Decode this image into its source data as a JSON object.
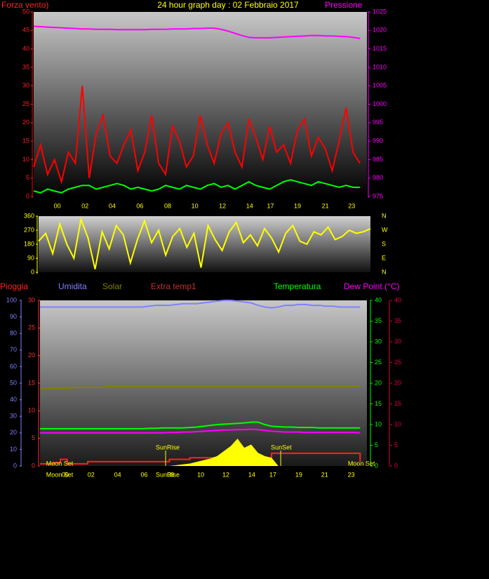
{
  "chart_data": [
    {
      "type": "line",
      "title": "24 hour graph day : 02 Febbraio 2017",
      "ylabel": "Forza vento)",
      "y2label": "Pressione",
      "x": [
        0,
        1,
        2,
        3,
        4,
        5,
        6,
        7,
        8,
        9,
        10,
        11,
        12,
        13,
        14,
        15,
        16,
        17,
        18,
        19,
        20,
        21,
        22,
        23,
        24,
        25,
        26,
        27,
        28,
        29,
        30,
        31,
        32,
        33,
        34,
        35,
        36,
        37,
        38,
        39,
        40,
        41,
        42,
        43,
        44,
        45,
        46,
        47
      ],
      "xlim": [
        0,
        48
      ],
      "xticks": [
        {
          "value": 3.4,
          "label": "00"
        },
        {
          "value": 7.4,
          "label": "02"
        },
        {
          "value": 11.3,
          "label": "04"
        },
        {
          "value": 15.3,
          "label": "06"
        },
        {
          "value": 19.3,
          "label": "08"
        },
        {
          "value": 23.2,
          "label": "10"
        },
        {
          "value": 27.2,
          "label": "12"
        },
        {
          "value": 31.1,
          "label": "14"
        },
        {
          "value": 34.1,
          "label": "17"
        },
        {
          "value": 38.0,
          "label": "19"
        },
        {
          "value": 42.0,
          "label": "21"
        },
        {
          "value": 45.8,
          "label": "23"
        }
      ],
      "ylim": [
        0,
        50
      ],
      "yticks": [
        0,
        5,
        10,
        15,
        20,
        25,
        30,
        35,
        40,
        45,
        50
      ],
      "y2lim": [
        975,
        1025
      ],
      "y2ticks": [
        975,
        980,
        985,
        990,
        995,
        1000,
        1005,
        1010,
        1015,
        1020,
        1025
      ],
      "series": [
        {
          "color": "#ff0000",
          "values": [
            8,
            14,
            6,
            10,
            4,
            12,
            9,
            30,
            5,
            17,
            22,
            11,
            9,
            14,
            18,
            7,
            12,
            22,
            9,
            6,
            19,
            15,
            8,
            11,
            22,
            14,
            9,
            17,
            20,
            12,
            8,
            21,
            16,
            10,
            19,
            12,
            14,
            9,
            18,
            21,
            11,
            16,
            13,
            7,
            15,
            24,
            12,
            9
          ]
        },
        {
          "color": "#00ff00",
          "values": [
            1.5,
            1,
            2,
            1.5,
            1,
            2,
            2.5,
            3,
            3,
            2,
            2.5,
            3,
            3.5,
            3,
            2,
            2.5,
            2,
            1.5,
            2,
            3,
            2.5,
            2,
            3,
            2.5,
            2,
            3,
            3.5,
            2.5,
            3,
            2,
            3,
            4,
            3,
            2.5,
            2,
            3,
            4,
            4.5,
            4,
            3.5,
            3,
            4,
            3.5,
            3,
            2.5,
            3,
            2.5,
            2.5
          ]
        },
        {
          "color": "#ff00ff",
          "axis": "y2",
          "values": [
            1021.1,
            1021,
            1020.9,
            1020.8,
            1020.7,
            1020.6,
            1020.5,
            1020.4,
            1020.4,
            1020.3,
            1020.3,
            1020.3,
            1020.2,
            1020.2,
            1020.2,
            1020.2,
            1020.2,
            1020.3,
            1020.3,
            1020.3,
            1020.4,
            1020.4,
            1020.4,
            1020.5,
            1020.5,
            1020.6,
            1020.6,
            1020.3,
            1019.8,
            1019.2,
            1018.6,
            1018.1,
            1018,
            1018,
            1018,
            1018.1,
            1018.2,
            1018.3,
            1018.4,
            1018.5,
            1018.6,
            1018.6,
            1018.5,
            1018.5,
            1018.4,
            1018.3,
            1018.1,
            1017.8
          ]
        }
      ]
    },
    {
      "type": "line",
      "x": [
        0,
        1,
        2,
        3,
        4,
        5,
        6,
        7,
        8,
        9,
        10,
        11,
        12,
        13,
        14,
        15,
        16,
        17,
        18,
        19,
        20,
        21,
        22,
        23,
        24,
        25,
        26,
        27,
        28,
        29,
        30,
        31,
        32,
        33,
        34,
        35,
        36,
        37,
        38,
        39,
        40,
        41,
        42,
        43,
        44,
        45,
        46,
        47
      ],
      "xlim": [
        0,
        47
      ],
      "ylim": [
        0,
        360
      ],
      "yticks": [
        0,
        90,
        180,
        270,
        360
      ],
      "y2lim": [
        0,
        360
      ],
      "y2ticks": [
        {
          "value": 360,
          "label": "N"
        },
        {
          "value": 270,
          "label": "W"
        },
        {
          "value": 180,
          "label": "S"
        },
        {
          "value": 90,
          "label": "E"
        },
        {
          "value": 0,
          "label": "N"
        }
      ],
      "series": [
        {
          "color": "#ffff00",
          "values": [
            200,
            250,
            120,
            310,
            180,
            90,
            340,
            220,
            20,
            260,
            150,
            300,
            240,
            60,
            210,
            330,
            190,
            270,
            110,
            230,
            280,
            160,
            250,
            30,
            300,
            210,
            140,
            260,
            320,
            190,
            240,
            170,
            280,
            220,
            130,
            250,
            300,
            200,
            180,
            260,
            240,
            290,
            210,
            230,
            270,
            250,
            260,
            280
          ]
        }
      ]
    },
    {
      "type": "line",
      "x": [
        0,
        1,
        2,
        3,
        4,
        5,
        6,
        7,
        8,
        9,
        10,
        11,
        12,
        13,
        14,
        15,
        16,
        17,
        18,
        19,
        20,
        21,
        22,
        23,
        24,
        25,
        26,
        27,
        28,
        29,
        30,
        31,
        32,
        33,
        34,
        35,
        36,
        37,
        38,
        39,
        40,
        41,
        42,
        43,
        44,
        45,
        46,
        47
      ],
      "xlim": [
        0,
        48
      ],
      "xticks": [
        {
          "value": 3.7,
          "label": "00"
        },
        {
          "value": 7.5,
          "label": "02"
        },
        {
          "value": 11.4,
          "label": "04"
        },
        {
          "value": 15.3,
          "label": "06"
        },
        {
          "value": 19.2,
          "label": "08"
        },
        {
          "value": 23.6,
          "label": "10"
        },
        {
          "value": 27.3,
          "label": "12"
        },
        {
          "value": 31.1,
          "label": "14"
        },
        {
          "value": 34.2,
          "label": "17"
        },
        {
          "value": 38.0,
          "label": "19"
        },
        {
          "value": 41.8,
          "label": "21"
        },
        {
          "value": 45.7,
          "label": "23"
        }
      ],
      "axes": [
        {
          "lim": [
            0,
            100
          ],
          "ticks": [
            0,
            10,
            20,
            30,
            40,
            50,
            60,
            70,
            80,
            90,
            100
          ],
          "color": "#8080ff"
        },
        {
          "lim": [
            0,
            30
          ],
          "ticks": [
            0,
            5,
            10,
            15,
            20,
            25,
            30
          ],
          "color": "#ff3030"
        },
        {
          "lim": [
            0,
            40
          ],
          "ticks": [
            0,
            5,
            10,
            15,
            20,
            25,
            30,
            35,
            40
          ],
          "color": "#00ff00"
        },
        {
          "lim": [
            0,
            40
          ],
          "ticks": [
            0,
            5,
            10,
            15,
            20,
            25,
            30,
            35,
            40
          ],
          "color": "#e00040"
        }
      ],
      "series": [
        {
          "name": "Pioggia",
          "color": "#ff2020",
          "axis": 1,
          "step": true,
          "values": [
            0.4,
            0.4,
            0.6,
            1.2,
            0.4,
            0.4,
            0.4,
            0.8,
            0.8,
            0.8,
            0.8,
            0.8,
            0.8,
            0.8,
            0.8,
            0.8,
            0.8,
            0.8,
            0.8,
            1.2,
            1.2,
            1.2,
            1.5,
            1.5,
            1.5,
            1.5,
            1.5,
            1.5,
            1.5,
            1.5,
            1.5,
            1.5,
            1.5,
            1.5,
            2.3,
            2.3,
            2.3,
            2.3,
            2.3,
            2.3,
            2.3,
            2.3,
            2.3,
            2.3,
            2.3,
            2.3,
            2.3,
            0.8
          ]
        },
        {
          "name": "Umidita",
          "color": "#8080ff",
          "axis": 0,
          "values": [
            96,
            96,
            96,
            96,
            96,
            96,
            96,
            96,
            96,
            96,
            96,
            96,
            96,
            96,
            96,
            96,
            96.5,
            97,
            97,
            97,
            97.5,
            98,
            98,
            98,
            98.5,
            99,
            99.5,
            100,
            100,
            99.5,
            99,
            98.5,
            97,
            96,
            95.5,
            96,
            97,
            97,
            97.5,
            97.5,
            97,
            97,
            96.5,
            96.5,
            96,
            96,
            96,
            96
          ]
        },
        {
          "name": "Solar",
          "color": "#808000",
          "axis": 0,
          "values": [
            47,
            47,
            47,
            47,
            47,
            47.5,
            47.5,
            47.5,
            47.5,
            47.5,
            48,
            48,
            48,
            48,
            48,
            48,
            48,
            48,
            48,
            48,
            48,
            48,
            48,
            48,
            48,
            48,
            48,
            48,
            48,
            48,
            48,
            48,
            48,
            48,
            48,
            48,
            48,
            48,
            48,
            48,
            48,
            48,
            48,
            48,
            48,
            48,
            48,
            48
          ]
        },
        {
          "color": "#ffff00",
          "axis": 0,
          "area": true,
          "values": [
            0,
            0,
            0,
            0,
            0,
            0,
            0,
            0,
            0,
            0,
            0,
            0,
            0,
            0,
            0,
            0,
            0,
            0,
            0,
            0,
            0.5,
            1,
            1.5,
            2.5,
            3.5,
            4.5,
            6,
            9,
            12,
            16.5,
            11,
            13,
            8,
            6,
            5,
            0,
            0,
            0,
            0,
            0,
            0,
            0,
            0,
            0,
            0,
            0,
            0,
            0
          ]
        },
        {
          "name": "Temperatura",
          "color": "#00ff00",
          "axis": 2,
          "values": [
            9,
            9,
            9,
            9,
            9,
            9,
            9,
            9,
            9,
            9,
            9,
            9,
            9,
            9,
            9,
            9,
            9.1,
            9.1,
            9.2,
            9.2,
            9.2,
            9.2,
            9.3,
            9.4,
            9.6,
            9.8,
            10,
            10.1,
            10.2,
            10.3,
            10.4,
            10.6,
            10.6,
            10,
            9.6,
            9.5,
            9.4,
            9.4,
            9.3,
            9.3,
            9.3,
            9.2,
            9.2,
            9.2,
            9.2,
            9.2,
            9.2,
            9.2
          ]
        },
        {
          "name": "Dew Point (°C)",
          "color": "#ff00ff",
          "axis": 3,
          "values": [
            8,
            8,
            8,
            8,
            8,
            8,
            8,
            8,
            8,
            8,
            8,
            8,
            8,
            8,
            8,
            8,
            8,
            8,
            8,
            8.1,
            8.1,
            8.2,
            8.2,
            8.3,
            8.4,
            8.5,
            8.6,
            8.7,
            8.7,
            8.8,
            8.8,
            8.9,
            8.8,
            8.6,
            8.4,
            8.3,
            8.2,
            8.2,
            8.2,
            8.1,
            8.1,
            8.1,
            8.1,
            8.1,
            8.1,
            8.1,
            8.1,
            8
          ]
        }
      ],
      "extra_legend": [
        {
          "name": "Extra temp1",
          "color": "#c03030"
        }
      ],
      "annotations": [
        {
          "text": "Moon Set",
          "x": 0.9
        },
        {
          "text": "SunRise",
          "x": 17
        },
        {
          "text": "SunSet",
          "x": 33.9
        },
        {
          "text": "Moon Set",
          "x": 45.2
        }
      ],
      "axis_annotations": [
        {
          "text": "Moon Set",
          "x": 0.9
        },
        {
          "text": "SunRise",
          "x": 17
        }
      ]
    }
  ]
}
